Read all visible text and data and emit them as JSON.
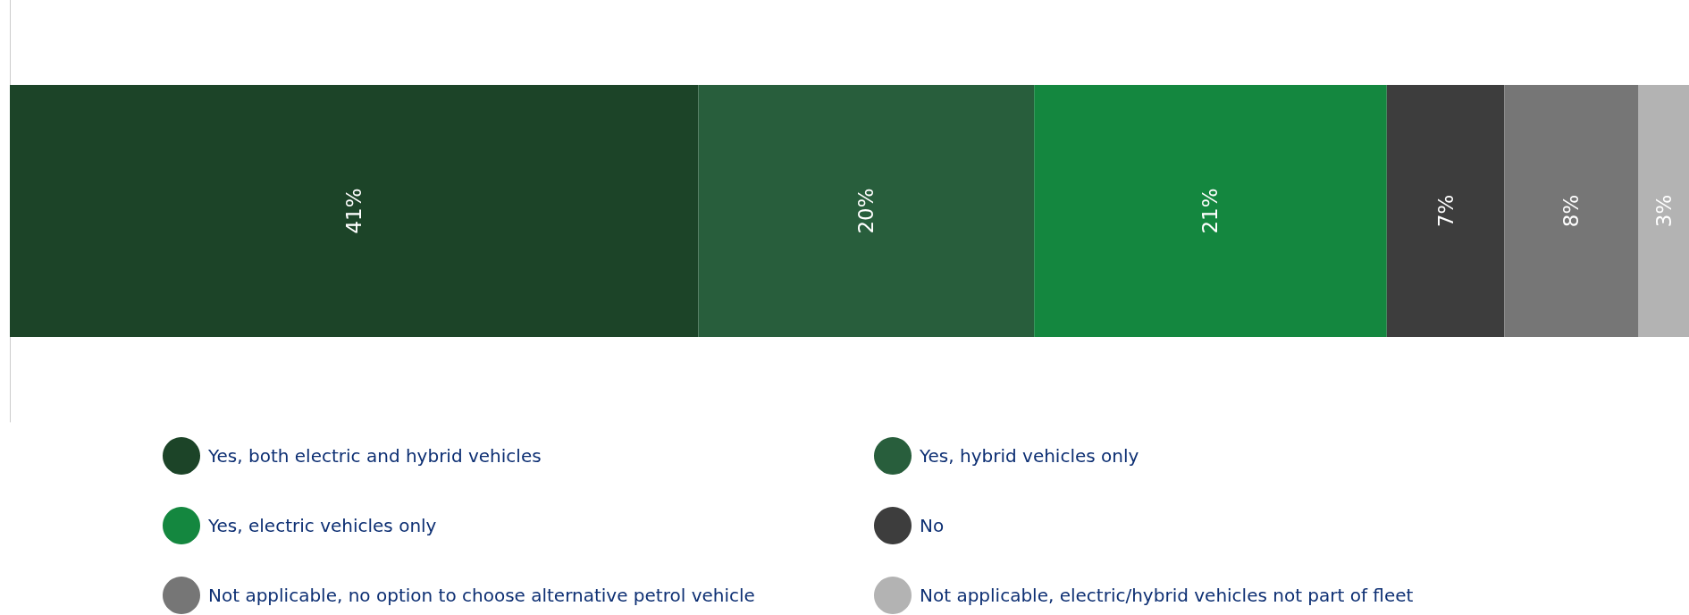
{
  "chart_data": {
    "type": "bar",
    "stacked": true,
    "orientation": "horizontal",
    "categories": [
      null
    ],
    "legend": "bottom",
    "series": [
      {
        "name": "Yes, both electric and hybrid vehicles",
        "color": "#1c4428",
        "values": [
          41
        ],
        "value_labels": [
          "41%"
        ]
      },
      {
        "name": "Yes, hybrid vehicles only",
        "color": "#285e3c",
        "values": [
          20
        ],
        "value_labels": [
          "20%"
        ]
      },
      {
        "name": "Yes, electric vehicles only",
        "color": "#14873f",
        "values": [
          21
        ],
        "value_labels": [
          "21%"
        ]
      },
      {
        "name": "No",
        "color": "#3d3d3d",
        "values": [
          7
        ],
        "value_labels": [
          "7%"
        ]
      },
      {
        "name": "Not applicable, no option to choose alternative petrol vehicle",
        "color": "#767676",
        "values": [
          8
        ],
        "value_labels": [
          "8%"
        ]
      },
      {
        "name": "Not applicable, electric/hybrid vehicles not part of fleet",
        "color": "#b3b3b3",
        "values": [
          3
        ],
        "value_labels": [
          "3%"
        ]
      }
    ]
  }
}
